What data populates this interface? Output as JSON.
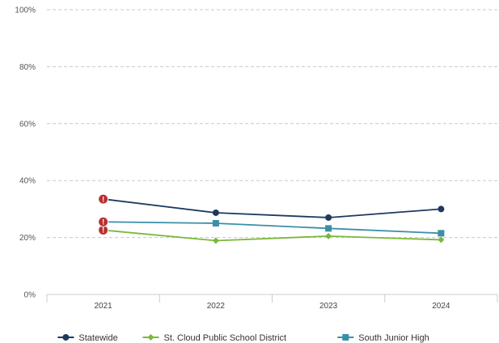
{
  "chart_data": {
    "type": "line",
    "x": [
      "2021",
      "2022",
      "2023",
      "2024"
    ],
    "y_ticks": [
      "0%",
      "20%",
      "40%",
      "60%",
      "80%",
      "100%"
    ],
    "ylim": [
      0,
      100
    ],
    "grid": true,
    "legend_position": "bottom",
    "series": [
      {
        "name": "Statewide",
        "color": "#1c3a5e",
        "marker": "circle",
        "values": [
          33.5,
          28.7,
          27.0,
          30.0
        ]
      },
      {
        "name": "St. Cloud Public School District",
        "color": "#7ab83a",
        "marker": "diamond",
        "values": [
          22.6,
          18.9,
          20.5,
          19.2
        ]
      },
      {
        "name": "South Junior High",
        "color": "#3a8fa8",
        "marker": "square",
        "values": [
          25.5,
          25.0,
          23.2,
          21.5
        ]
      }
    ],
    "warning_marker": {
      "icon": "exclamation-circle-icon",
      "color": "#b83232",
      "text": "!"
    }
  }
}
